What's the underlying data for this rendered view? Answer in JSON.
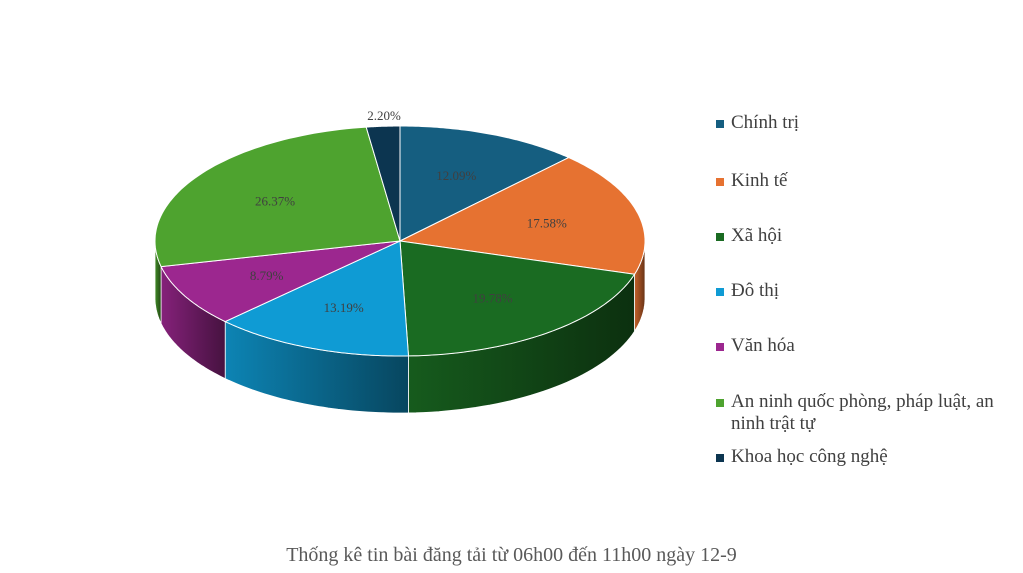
{
  "chart_data": {
    "type": "pie",
    "title": "",
    "categories": [
      "Chính trị",
      "Kinh tế",
      "Xã hội",
      "Đô thị",
      "Văn hóa",
      "An ninh quốc phòng, pháp luật, an ninh trật tự",
      "Khoa học công nghệ"
    ],
    "values": [
      12.09,
      17.58,
      19.78,
      13.19,
      8.79,
      26.37,
      2.2
    ],
    "labels": [
      "12.09%",
      "17.58%",
      "19.78%",
      "13.19%",
      "8.79%",
      "26.37%",
      "2.20%"
    ],
    "colors": [
      "#155e80",
      "#e67231",
      "#1a6b22",
      "#0f9bd4",
      "#9c278f",
      "#4ea32f",
      "#0c3550"
    ],
    "legend_position": "right",
    "style": "3d"
  },
  "caption": "Thống kê tin bài đăng tải từ 06h00 đến 11h00 ngày 12-9"
}
